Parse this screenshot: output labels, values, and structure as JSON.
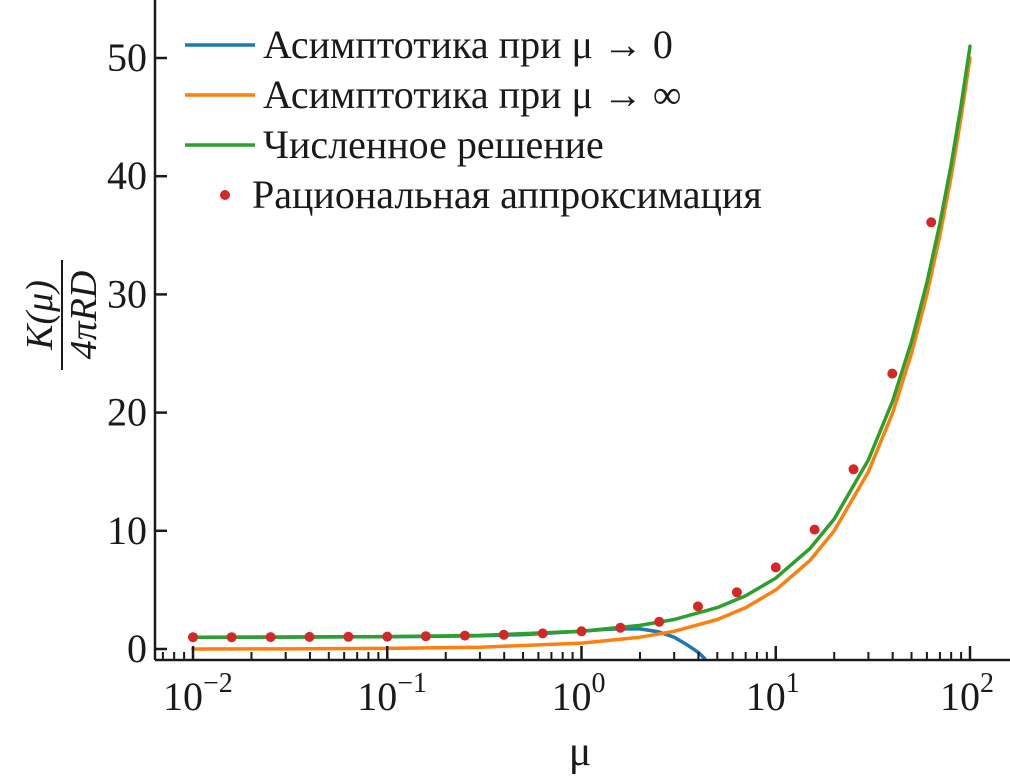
{
  "chart_data": {
    "type": "line",
    "x_scale": "log",
    "xlim": [
      0.007,
      130
    ],
    "ylim": [
      -0.8,
      55
    ],
    "grid": false,
    "legend_position": "top-left",
    "xlabel": "μ",
    "ylabel": {
      "numerator": "K(μ)",
      "denominator": "4πRD"
    },
    "x_ticks": [
      {
        "value": 0.01,
        "base": "10",
        "exp": "−2"
      },
      {
        "value": 0.1,
        "base": "10",
        "exp": "−1"
      },
      {
        "value": 1,
        "base": "10",
        "exp": "0"
      },
      {
        "value": 10,
        "base": "10",
        "exp": "1"
      },
      {
        "value": 100,
        "base": "10",
        "exp": "2"
      }
    ],
    "y_ticks": [
      {
        "value": 0,
        "label": "0"
      },
      {
        "value": 10,
        "label": "10"
      },
      {
        "value": 20,
        "label": "20"
      },
      {
        "value": 30,
        "label": "30"
      },
      {
        "value": 40,
        "label": "40"
      },
      {
        "value": 50,
        "label": "50"
      }
    ],
    "series": [
      {
        "name": "Асимптотика при μ → 0",
        "kind": "line",
        "color": "#1f77b4",
        "points": [
          [
            0.01,
            1.0
          ],
          [
            0.02,
            1.01
          ],
          [
            0.05,
            1.02
          ],
          [
            0.1,
            1.04
          ],
          [
            0.2,
            1.08
          ],
          [
            0.3,
            1.12
          ],
          [
            0.5,
            1.22
          ],
          [
            0.7,
            1.35
          ],
          [
            1.0,
            1.5
          ],
          [
            1.3,
            1.65
          ],
          [
            1.6,
            1.72
          ],
          [
            2.0,
            1.7
          ],
          [
            2.5,
            1.45
          ],
          [
            3.0,
            1.0
          ],
          [
            3.5,
            0.35
          ],
          [
            4.0,
            -0.3
          ],
          [
            4.3,
            -0.8
          ]
        ]
      },
      {
        "name": "Асимптотика при μ → ∞",
        "kind": "line",
        "color": "#ff7f0e",
        "points": [
          [
            0.01,
            0.0
          ],
          [
            0.03,
            0.01
          ],
          [
            0.1,
            0.05
          ],
          [
            0.3,
            0.15
          ],
          [
            1.0,
            0.5
          ],
          [
            2.0,
            1.0
          ],
          [
            3.0,
            1.5
          ],
          [
            5.0,
            2.5
          ],
          [
            7.0,
            3.5
          ],
          [
            10.0,
            5.0
          ],
          [
            15.0,
            7.5
          ],
          [
            20.0,
            10.0
          ],
          [
            30.0,
            15.0
          ],
          [
            40.0,
            20.0
          ],
          [
            50.0,
            25.0
          ],
          [
            60.0,
            30.0
          ],
          [
            70.0,
            35.0
          ],
          [
            80.0,
            40.0
          ],
          [
            90.0,
            45.0
          ],
          [
            100.0,
            50.0
          ]
        ]
      },
      {
        "name": "Численное решение",
        "kind": "line",
        "color": "#2ca02c",
        "points": [
          [
            0.01,
            1.0
          ],
          [
            0.03,
            1.01
          ],
          [
            0.1,
            1.05
          ],
          [
            0.3,
            1.15
          ],
          [
            1.0,
            1.5
          ],
          [
            2.0,
            2.0
          ],
          [
            3.0,
            2.5
          ],
          [
            5.0,
            3.5
          ],
          [
            7.0,
            4.5
          ],
          [
            10.0,
            6.0
          ],
          [
            15.0,
            8.5
          ],
          [
            20.0,
            11.0
          ],
          [
            30.0,
            16.0
          ],
          [
            40.0,
            21.0
          ],
          [
            50.0,
            26.0
          ],
          [
            60.0,
            31.0
          ],
          [
            70.0,
            36.0
          ],
          [
            80.0,
            41.0
          ],
          [
            90.0,
            46.0
          ],
          [
            100.0,
            51.0
          ]
        ]
      },
      {
        "name": "Рациональная аппроксимация",
        "kind": "scatter",
        "color": "#d62728",
        "points": [
          [
            0.01,
            1.0
          ],
          [
            0.0158,
            1.0
          ],
          [
            0.0251,
            1.01
          ],
          [
            0.0398,
            1.02
          ],
          [
            0.0631,
            1.03
          ],
          [
            0.1,
            1.05
          ],
          [
            0.158,
            1.08
          ],
          [
            0.251,
            1.13
          ],
          [
            0.398,
            1.2
          ],
          [
            0.631,
            1.32
          ],
          [
            1.0,
            1.5
          ],
          [
            1.585,
            1.8
          ],
          [
            2.512,
            2.3
          ],
          [
            3.981,
            3.6
          ],
          [
            6.31,
            4.8
          ],
          [
            10.0,
            6.9
          ],
          [
            15.85,
            10.1
          ],
          [
            25.12,
            15.2
          ],
          [
            39.81,
            23.3
          ],
          [
            63.1,
            36.1
          ]
        ]
      }
    ]
  }
}
